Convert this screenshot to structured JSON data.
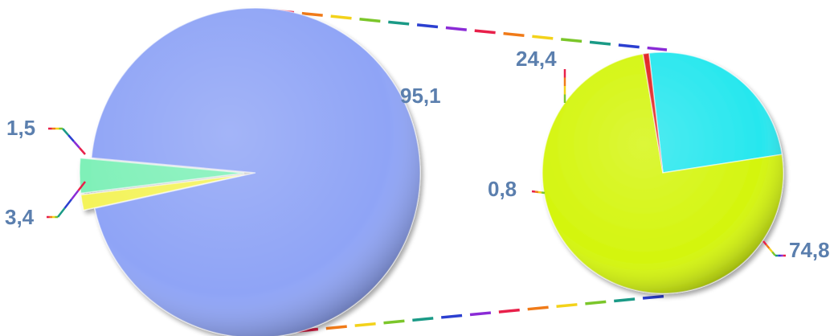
{
  "chart_data": {
    "type": "pie",
    "title": "",
    "charts": [
      {
        "slices": [
          {
            "value": 95.1,
            "label": "95,1",
            "color": "#8fa4f6"
          },
          {
            "value": 1.5,
            "label": "1,5",
            "color": "#f4f35a"
          },
          {
            "value": 3.4,
            "label": "3,4",
            "color": "#7ff0b8"
          }
        ]
      },
      {
        "slices": [
          {
            "value": 24.4,
            "label": "24,4",
            "color": "#27e7ee"
          },
          {
            "value": 74.8,
            "label": "74,8",
            "color": "#d4f50e"
          },
          {
            "value": 0.8,
            "label": "0,8",
            "color": "#e02020"
          }
        ]
      }
    ],
    "connector": "dashed-rainbow",
    "legend": "none",
    "grid": false
  }
}
